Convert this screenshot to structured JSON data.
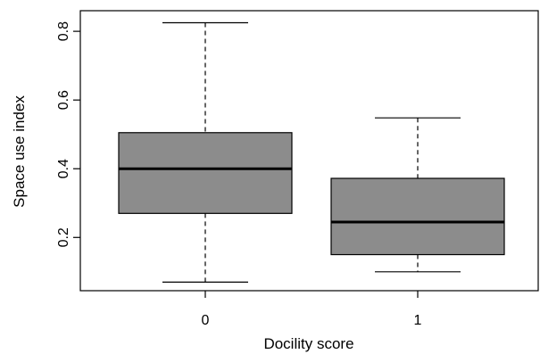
{
  "chart_data": {
    "type": "boxplot",
    "title": "",
    "xlabel": "Docility score",
    "ylabel": "Space use index",
    "categories": [
      "0",
      "1"
    ],
    "y_ticks": [
      "0.2",
      "0.4",
      "0.6",
      "0.8"
    ],
    "y_tick_values": [
      0.2,
      0.4,
      0.6,
      0.8
    ],
    "ylim": [
      0.045,
      0.86
    ],
    "grid": false,
    "boxes": [
      {
        "category": "0",
        "whisker_low": 0.07,
        "q1": 0.27,
        "median": 0.4,
        "q3": 0.505,
        "whisker_high": 0.825
      },
      {
        "category": "1",
        "whisker_low": 0.1,
        "q1": 0.15,
        "median": 0.245,
        "q3": 0.372,
        "whisker_high": 0.548
      }
    ],
    "colors": {
      "box_fill": "#8c8c8c",
      "stroke": "#000000"
    }
  }
}
